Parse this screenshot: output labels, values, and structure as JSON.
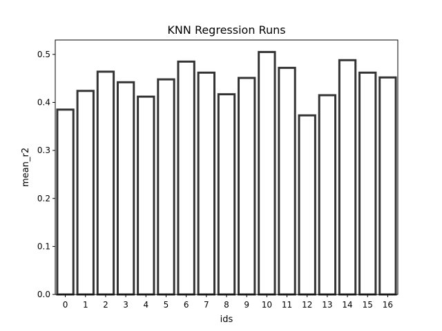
{
  "chart_data": {
    "type": "bar",
    "title": "KNN Regression Runs",
    "xlabel": "ids",
    "ylabel": "mean_r2",
    "categories": [
      "0",
      "1",
      "2",
      "3",
      "4",
      "5",
      "6",
      "7",
      "8",
      "9",
      "10",
      "11",
      "12",
      "13",
      "14",
      "15",
      "16"
    ],
    "values": [
      0.385,
      0.424,
      0.464,
      0.442,
      0.412,
      0.448,
      0.485,
      0.462,
      0.417,
      0.451,
      0.505,
      0.472,
      0.373,
      0.415,
      0.488,
      0.462,
      0.452
    ],
    "ylim": [
      0,
      0.53
    ],
    "yticks": [
      "0.0",
      "0.1",
      "0.2",
      "0.3",
      "0.4",
      "0.5"
    ],
    "grid": false,
    "colors": {
      "bar_fill": "#ffffff",
      "bar_edge": "#333333",
      "axis": "#000000"
    }
  }
}
